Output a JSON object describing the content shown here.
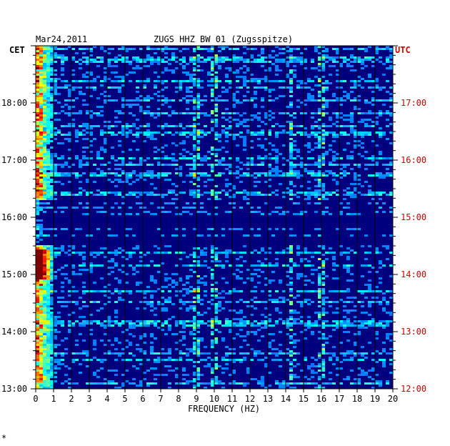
{
  "chart_data": {
    "type": "heatmap",
    "date": "Mar24,2011",
    "title": "ZUGS HHZ BW 01 (Zugsspitze)",
    "xlabel": "FREQUENCY (HZ)",
    "xlim": [
      0,
      20
    ],
    "x_ticks": [
      "0",
      "1",
      "2",
      "3",
      "4",
      "5",
      "6",
      "7",
      "8",
      "9",
      "10",
      "11",
      "12",
      "13",
      "14",
      "15",
      "16",
      "17",
      "18",
      "19",
      "20"
    ],
    "left_axis_label": "CET",
    "right_axis_label": "UTC",
    "left_ticks": [
      "13:00",
      "14:00",
      "15:00",
      "16:00",
      "17:00",
      "18:00"
    ],
    "right_ticks": [
      "12:00",
      "13:00",
      "14:00",
      "15:00",
      "16:00",
      "17:00"
    ],
    "time_range_cet": [
      "13:00",
      "19:00"
    ],
    "colormap": "jet",
    "background_color": "#00007f",
    "right_axis_color": "#cc0000",
    "notable_lines_hz": [
      0.2,
      9.0,
      10.0,
      14.3,
      16.0
    ]
  }
}
